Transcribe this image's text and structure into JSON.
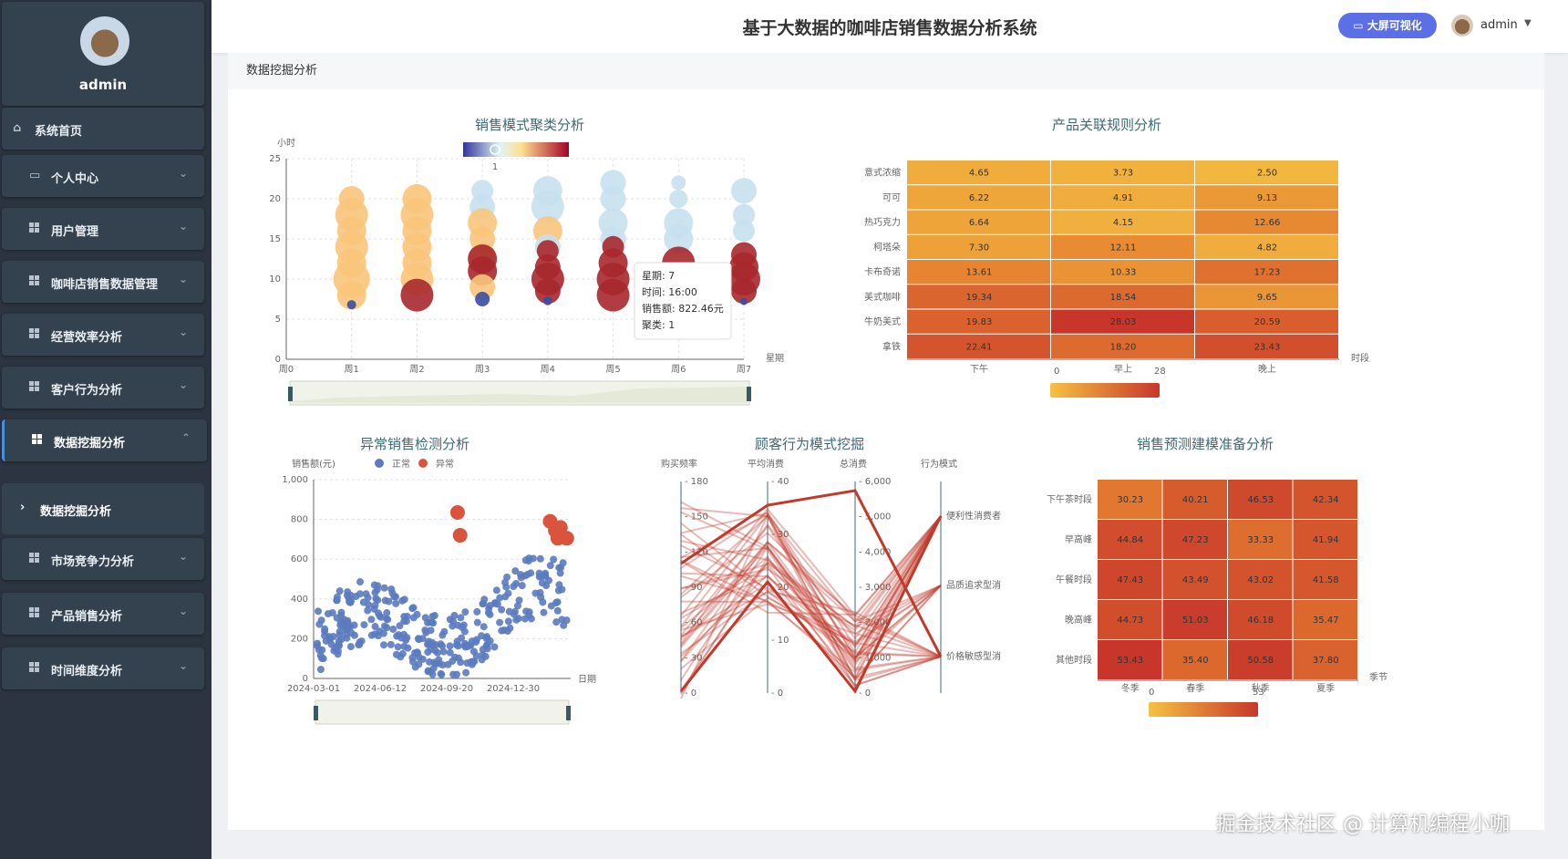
{
  "app": {
    "title": "基于大数据的咖啡店销售数据分析系统",
    "bigscreen_label": "大屏可视化",
    "user": "admin"
  },
  "sidebar": {
    "profile_name": "admin",
    "items": [
      {
        "label": "系统首页",
        "icon": "home-icon"
      },
      {
        "label": "个人中心",
        "icon": "card-icon"
      },
      {
        "label": "用户管理",
        "icon": "grid-icon"
      },
      {
        "label": "咖啡店销售数据管理",
        "icon": "grid-icon"
      },
      {
        "label": "经营效率分析",
        "icon": "grid-icon"
      },
      {
        "label": "客户行为分析",
        "icon": "grid-icon"
      },
      {
        "label": "数据挖掘分析",
        "icon": "grid-icon",
        "active": true
      },
      {
        "label": "市场竞争力分析",
        "icon": "grid-icon"
      },
      {
        "label": "产品销售分析",
        "icon": "grid-icon"
      },
      {
        "label": "时间维度分析",
        "icon": "grid-icon"
      }
    ],
    "sub_item": "数据挖掘分析"
  },
  "breadcrumb": "数据挖掘分析",
  "watermark": "掘金技术社区 @ 计算机编程小咖",
  "chart_data": [
    {
      "type": "scatter",
      "title": "销售模式聚类分析",
      "ylabel": "小时",
      "xlabel": "星期",
      "x_ticks": [
        "周0",
        "周1",
        "周2",
        "周3",
        "周4",
        "周5",
        "周6",
        "周7"
      ],
      "y_ticks": [
        0,
        5,
        10,
        15,
        20,
        25
      ],
      "ylim": [
        0,
        25
      ],
      "visual_map_value": "1",
      "tooltip": {
        "day": "星期: 7",
        "time": "时间: 16:00",
        "sales": "销售额: 822.46元",
        "cluster": "聚类: 1"
      },
      "points": [
        {
          "x": 1,
          "y": 20,
          "c": "#f9c57b",
          "r": 14
        },
        {
          "x": 1,
          "y": 18,
          "c": "#f9c57b",
          "r": 18
        },
        {
          "x": 1,
          "y": 16,
          "c": "#f9c57b",
          "r": 16
        },
        {
          "x": 1,
          "y": 14,
          "c": "#f9c57b",
          "r": 18
        },
        {
          "x": 1,
          "y": 12,
          "c": "#f9c57b",
          "r": 16
        },
        {
          "x": 1,
          "y": 10,
          "c": "#f9c57b",
          "r": 20
        },
        {
          "x": 1,
          "y": 8,
          "c": "#f9c57b",
          "r": 16
        },
        {
          "x": 1,
          "y": 6.8,
          "c": "#3b4ca3",
          "r": 5
        },
        {
          "x": 2,
          "y": 20,
          "c": "#f9c57b",
          "r": 16
        },
        {
          "x": 2,
          "y": 18,
          "c": "#f9c57b",
          "r": 18
        },
        {
          "x": 2,
          "y": 16,
          "c": "#f9c57b",
          "r": 16
        },
        {
          "x": 2,
          "y": 14,
          "c": "#f9c57b",
          "r": 16
        },
        {
          "x": 2,
          "y": 12,
          "c": "#f9c57b",
          "r": 16
        },
        {
          "x": 2,
          "y": 10,
          "c": "#f9c57b",
          "r": 18
        },
        {
          "x": 2,
          "y": 8,
          "c": "#a7282c",
          "r": 18
        },
        {
          "x": 3,
          "y": 21,
          "c": "#c6e0ee",
          "r": 12
        },
        {
          "x": 3,
          "y": 19,
          "c": "#c6e0ee",
          "r": 14
        },
        {
          "x": 3,
          "y": 17,
          "c": "#f9c57b",
          "r": 16
        },
        {
          "x": 3,
          "y": 15,
          "c": "#f9c57b",
          "r": 14
        },
        {
          "x": 3,
          "y": 13,
          "c": "#f9c57b",
          "r": 14
        },
        {
          "x": 3,
          "y": 12.5,
          "c": "#a7282c",
          "r": 16
        },
        {
          "x": 3,
          "y": 11,
          "c": "#a7282c",
          "r": 16
        },
        {
          "x": 3,
          "y": 9,
          "c": "#f9c57b",
          "r": 14
        },
        {
          "x": 3,
          "y": 7.5,
          "c": "#3b4ca3",
          "r": 8
        },
        {
          "x": 4,
          "y": 21,
          "c": "#c6e0ee",
          "r": 16
        },
        {
          "x": 4,
          "y": 19,
          "c": "#c6e0ee",
          "r": 18
        },
        {
          "x": 4,
          "y": 16,
          "c": "#f9c57b",
          "r": 16
        },
        {
          "x": 4,
          "y": 14,
          "c": "#c6e0ee",
          "r": 14
        },
        {
          "x": 4,
          "y": 13.5,
          "c": "#a7282c",
          "r": 12
        },
        {
          "x": 4,
          "y": 11.5,
          "c": "#a7282c",
          "r": 14
        },
        {
          "x": 4,
          "y": 10,
          "c": "#a7282c",
          "r": 18
        },
        {
          "x": 4,
          "y": 8.5,
          "c": "#a7282c",
          "r": 14
        },
        {
          "x": 4,
          "y": 7.3,
          "c": "#3b4ca3",
          "r": 5
        },
        {
          "x": 5,
          "y": 22,
          "c": "#c6e0ee",
          "r": 14
        },
        {
          "x": 5,
          "y": 20,
          "c": "#c6e0ee",
          "r": 14
        },
        {
          "x": 5,
          "y": 17,
          "c": "#c6e0ee",
          "r": 16
        },
        {
          "x": 5,
          "y": 15,
          "c": "#c6e0ee",
          "r": 14
        },
        {
          "x": 5,
          "y": 14,
          "c": "#a7282c",
          "r": 12
        },
        {
          "x": 5,
          "y": 12,
          "c": "#a7282c",
          "r": 16
        },
        {
          "x": 5,
          "y": 10,
          "c": "#a7282c",
          "r": 18
        },
        {
          "x": 5,
          "y": 8,
          "c": "#a7282c",
          "r": 18
        },
        {
          "x": 6,
          "y": 22,
          "c": "#c6e0ee",
          "r": 8
        },
        {
          "x": 6,
          "y": 20,
          "c": "#c6e0ee",
          "r": 10
        },
        {
          "x": 6,
          "y": 17,
          "c": "#c6e0ee",
          "r": 16
        },
        {
          "x": 6,
          "y": 15,
          "c": "#c6e0ee",
          "r": 16
        },
        {
          "x": 6,
          "y": 12,
          "c": "#a7282c",
          "r": 18
        },
        {
          "x": 7,
          "y": 21,
          "c": "#c6e0ee",
          "r": 14
        },
        {
          "x": 7,
          "y": 18,
          "c": "#c6e0ee",
          "r": 12
        },
        {
          "x": 7,
          "y": 16,
          "c": "#c6e0ee",
          "r": 12
        },
        {
          "x": 7,
          "y": 13,
          "c": "#a7282c",
          "r": 14
        },
        {
          "x": 7,
          "y": 11.5,
          "c": "#a7282c",
          "r": 16
        },
        {
          "x": 7,
          "y": 10,
          "c": "#a7282c",
          "r": 18
        },
        {
          "x": 7,
          "y": 8.5,
          "c": "#a7282c",
          "r": 14
        },
        {
          "x": 7,
          "y": 7.2,
          "c": "#3b4ca3",
          "r": 4
        }
      ]
    },
    {
      "type": "heatmap",
      "title": "产品关联规则分析",
      "xlabel": "时段",
      "rows": [
        "意式浓缩",
        "可可",
        "热巧克力",
        "柯塔朵",
        "卡布奇诺",
        "美式咖啡",
        "牛奶美式",
        "拿铁"
      ],
      "cols": [
        "下午",
        "早上",
        "晚上"
      ],
      "values": [
        [
          4.65,
          3.73,
          2.5
        ],
        [
          6.22,
          4.91,
          9.13
        ],
        [
          6.64,
          4.15,
          12.66
        ],
        [
          7.3,
          12.11,
          4.82
        ],
        [
          13.61,
          10.33,
          17.23
        ],
        [
          19.34,
          18.54,
          9.65
        ],
        [
          19.83,
          28.03,
          20.59
        ],
        [
          22.41,
          18.2,
          23.43
        ]
      ],
      "range": [
        0,
        28
      ]
    },
    {
      "type": "scatter",
      "title": "异常销售检测分析",
      "ylabel": "销售额(元)",
      "xlabel": "日期",
      "legend": [
        "正常",
        "异常"
      ],
      "x_ticks": [
        "2024-03-01",
        "2024-06-12",
        "2024-09-20",
        "2024-12-30"
      ],
      "y_ticks": [
        "0",
        "200",
        "400",
        "600",
        "800",
        "1,000"
      ],
      "ylim": [
        0,
        1000
      ],
      "normal_count": 320,
      "anomalies": [
        {
          "x": 0.56,
          "y": 835
        },
        {
          "x": 0.57,
          "y": 720
        },
        {
          "x": 0.92,
          "y": 790
        },
        {
          "x": 0.94,
          "y": 745
        },
        {
          "x": 0.96,
          "y": 760
        },
        {
          "x": 0.985,
          "y": 705
        },
        {
          "x": 0.95,
          "y": 705
        }
      ]
    },
    {
      "type": "parallel",
      "title": "顾客行为模式挖掘",
      "axes": [
        {
          "name": "购买频率",
          "ticks": [
            "0",
            "30",
            "60",
            "90",
            "120",
            "150",
            "180"
          ]
        },
        {
          "name": "平均消费",
          "ticks": [
            "0",
            "10",
            "20",
            "30",
            "40"
          ]
        },
        {
          "name": "总消费",
          "ticks": [
            "0",
            "1,000",
            "2,000",
            "3,000",
            "4,000",
            "5,000",
            "6,000"
          ]
        },
        {
          "name": "行为模式",
          "ticks": [
            "价格敏感型消",
            "品质追求型消",
            "便利性消费者"
          ]
        }
      ]
    },
    {
      "type": "heatmap",
      "title": "销售预测建模准备分析",
      "xlabel": "季节",
      "rows": [
        "下午茶时段",
        "早高峰",
        "午餐时段",
        "晚高峰",
        "其他时段"
      ],
      "cols": [
        "冬季",
        "春季",
        "秋季",
        "夏季"
      ],
      "values": [
        [
          30.23,
          40.21,
          46.53,
          42.34
        ],
        [
          44.84,
          47.23,
          33.33,
          41.94
        ],
        [
          47.43,
          43.49,
          43.02,
          41.58
        ],
        [
          44.73,
          51.03,
          46.18,
          35.47
        ],
        [
          53.43,
          35.4,
          50.58,
          37.8
        ]
      ],
      "range": [
        0,
        53
      ]
    }
  ]
}
